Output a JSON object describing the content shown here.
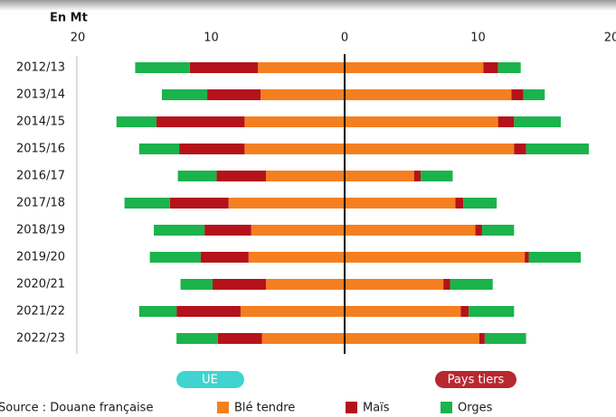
{
  "chart_data": {
    "type": "diverging-bar",
    "axis_label": "En Mt",
    "source": "Source : Douane française",
    "sides": [
      "UE",
      "Pays tiers"
    ],
    "categories": [
      "2012/13",
      "2013/14",
      "2014/15",
      "2015/16",
      "2016/17",
      "2017/18",
      "2018/19",
      "2019/20",
      "2020/21",
      "2021/22",
      "2022/23"
    ],
    "series": [
      {
        "name": "Blé tendre",
        "color": "#f47f20",
        "ue": [
          6.5,
          6.3,
          7.5,
          7.5,
          5.9,
          8.7,
          7.0,
          7.2,
          5.9,
          7.8,
          6.2
        ],
        "pays_tiers": [
          10.4,
          12.5,
          11.5,
          12.7,
          5.2,
          8.3,
          9.8,
          13.5,
          7.4,
          8.7,
          10.1
        ]
      },
      {
        "name": "Maïs",
        "color": "#b5121b",
        "ue": [
          5.1,
          4.0,
          6.6,
          4.9,
          3.7,
          4.4,
          3.5,
          3.6,
          4.0,
          4.8,
          3.3
        ],
        "pays_tiers": [
          1.1,
          0.9,
          1.2,
          0.9,
          0.5,
          0.6,
          0.5,
          0.3,
          0.5,
          0.6,
          0.4
        ]
      },
      {
        "name": "Orges",
        "color": "#1bb34b",
        "ue": [
          4.1,
          3.4,
          3.0,
          3.0,
          2.9,
          3.4,
          3.8,
          3.8,
          2.4,
          2.8,
          3.1
        ],
        "pays_tiers": [
          1.7,
          1.6,
          3.5,
          4.7,
          2.4,
          2.5,
          2.4,
          3.9,
          3.2,
          3.4,
          3.1
        ]
      }
    ],
    "xlim": [
      0,
      20
    ],
    "xticks": [
      0,
      10,
      20
    ]
  }
}
